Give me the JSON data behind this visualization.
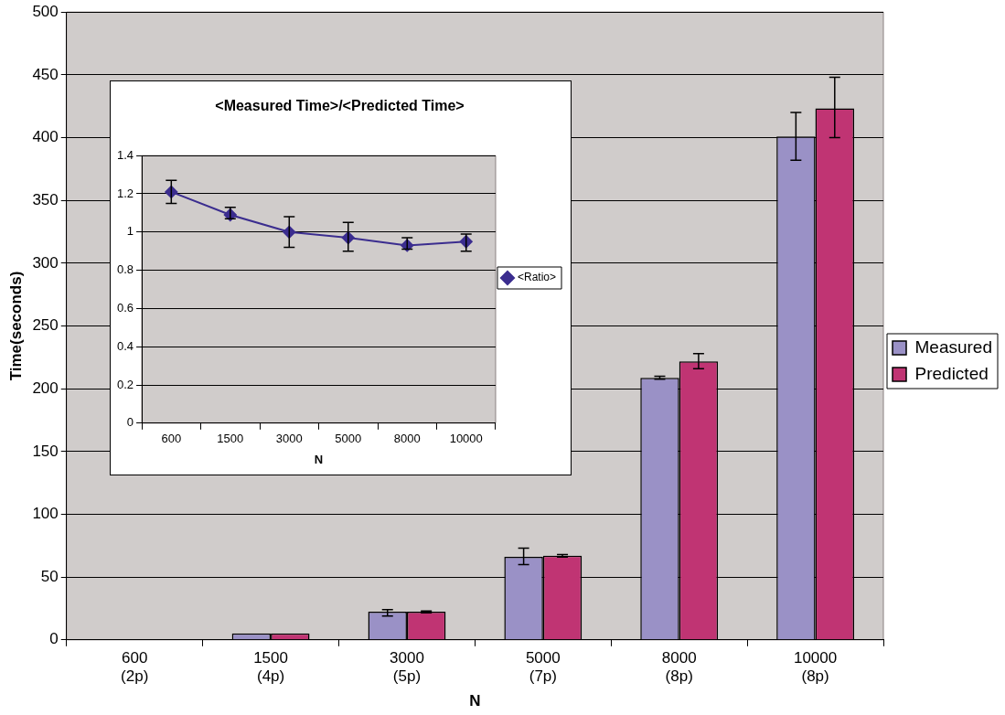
{
  "chart_data": [
    {
      "type": "bar",
      "ylabel": "Time(seconds)",
      "xlabel": "N",
      "categories": [
        "600 (2p)",
        "1500 (4p)",
        "3000 (5p)",
        "5000 (7p)",
        "8000 (8p)",
        "10000 (8p)"
      ],
      "series": [
        {
          "name": "Measured",
          "color": "#9a91c6",
          "values": [
            null,
            5.1,
            22.4,
            66.2,
            208.7,
            401
          ],
          "errors": [
            null,
            null,
            [
              19,
              24
            ],
            [
              60,
              73
            ],
            [
              207.5,
              210
            ],
            [
              382,
              420
            ]
          ]
        },
        {
          "name": "Predicted",
          "color": "#c03473",
          "values": [
            null,
            5.1,
            22.4,
            67,
            221.7,
            423.4
          ],
          "errors": [
            null,
            null,
            [
              21.5,
              23
            ],
            [
              66,
              68
            ],
            [
              216,
              228
            ],
            [
              400,
              448
            ]
          ]
        }
      ],
      "ylim": [
        0,
        500
      ],
      "yticks": [
        0,
        50,
        100,
        150,
        200,
        250,
        300,
        350,
        400,
        450,
        500
      ],
      "grid": "y",
      "legend": "right"
    },
    {
      "type": "line",
      "title": "<Measured Time>/<Predicted Time>",
      "xlabel": "N",
      "categories": [
        "600",
        "1500",
        "3000",
        "5000",
        "8000",
        "10000"
      ],
      "series": [
        {
          "name": "<Ratio>",
          "color": "#3b2d8f",
          "values": [
            1.21,
            1.09,
            1.0,
            0.97,
            0.93,
            0.95
          ],
          "errors": [
            [
              1.15,
              1.27
            ],
            [
              1.07,
              1.13
            ],
            [
              0.92,
              1.08
            ],
            [
              0.9,
              1.05
            ],
            [
              0.91,
              0.97
            ],
            [
              0.9,
              0.99
            ]
          ]
        }
      ],
      "ylim": [
        0,
        1.4
      ],
      "yticks": [
        0,
        0.2,
        0.4,
        0.6,
        0.8,
        1,
        1.2,
        1.4
      ],
      "grid": "y",
      "legend": "right",
      "marker": "diamond"
    }
  ]
}
